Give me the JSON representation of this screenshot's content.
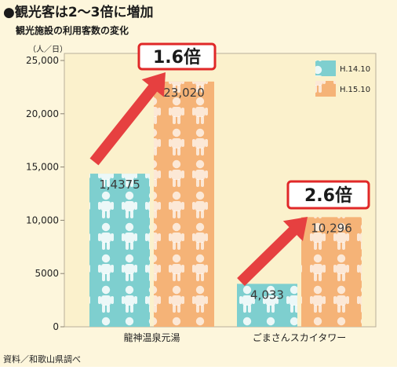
{
  "header": {
    "headline": "●観光客は2〜3倍に増加",
    "subtitle": "観光施設の利用客数の変化"
  },
  "footer": {
    "source": "資料／和歌山県調べ"
  },
  "colors": {
    "background": "#fdf6dc",
    "plot_background": "#fbf1cc",
    "series_h14": "#7ecfcf",
    "series_h15": "#f5b377",
    "arrow": "#e64040",
    "badge_border": "#e02828"
  },
  "chart_data": {
    "type": "bar",
    "ylabel": "（人／日）",
    "ylim": [
      0,
      25000
    ],
    "yticks": [
      {
        "value": 0,
        "label": "0"
      },
      {
        "value": 5000,
        "label": "5000"
      },
      {
        "value": 10000,
        "label": "10,000"
      },
      {
        "value": 15000,
        "label": "15,000"
      },
      {
        "value": 20000,
        "label": "20,000"
      },
      {
        "value": 25000,
        "label": "25,000"
      }
    ],
    "categories": [
      "龍神温泉元湯",
      "ごまさんスカイタワー"
    ],
    "series": [
      {
        "name": "H.14.10",
        "values": [
          14375,
          4033
        ],
        "labels": [
          "1,4375",
          "4,033"
        ]
      },
      {
        "name": "H.15.10",
        "values": [
          23020,
          10296
        ],
        "labels": [
          "23,020",
          "10,296"
        ]
      }
    ],
    "annotations": [
      "1.6倍",
      "2.6倍"
    ],
    "grid": false,
    "legend_position": "top-right"
  }
}
